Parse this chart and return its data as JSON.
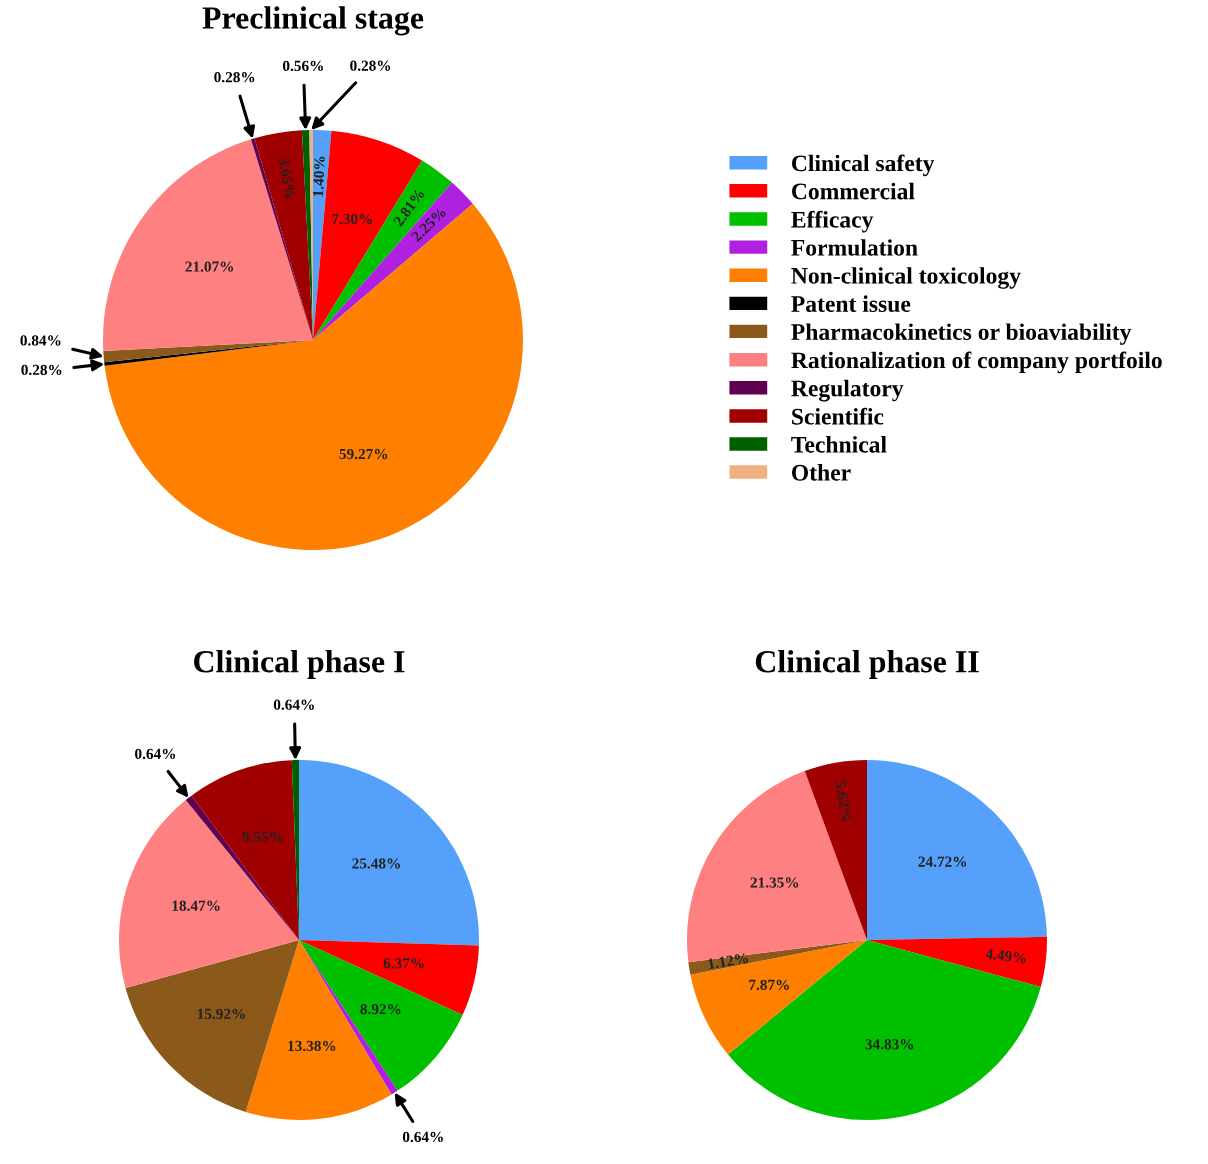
{
  "chart_data": [
    {
      "type": "pie",
      "title": "Preclinical stage",
      "legend": "right",
      "categories": [
        "Clinical safety",
        "Commercial",
        "Efficacy",
        "Formulation",
        "Non-clinical toxicology",
        "Patent issue",
        "Pharmacokinetics or bioaviability",
        "Rationalization of company portfoilo",
        "Regulatory",
        "Scientific",
        "Technical",
        "Other"
      ],
      "values": [
        1.4,
        7.3,
        2.81,
        2.25,
        59.27,
        0.28,
        0.84,
        21.07,
        0.28,
        3.65,
        0.56,
        0.28
      ],
      "value_labels": [
        "1.40%",
        "7.30%",
        "2.81%",
        "2.25%",
        "59.27%",
        "0.28%",
        "0.84%",
        "21.07%",
        "0.28%",
        "3.65%",
        "0.56%",
        "0.28%"
      ],
      "colors": [
        "#55a0fa",
        "#ff0000",
        "#00c000",
        "#b020e0",
        "#ff8000",
        "#000000",
        "#8b5a1a",
        "#ff8080",
        "#600050",
        "#a00000",
        "#006000",
        "#f0b080"
      ]
    },
    {
      "type": "pie",
      "title": "Clinical phase I",
      "categories": [
        null,
        null,
        null,
        null,
        null,
        null,
        null,
        null,
        null,
        null
      ],
      "values": [
        25.48,
        6.37,
        8.92,
        0.64,
        13.38,
        15.92,
        18.47,
        0.64,
        9.55,
        0.64
      ],
      "value_labels": [
        "25.48%",
        "6.37%",
        "8.92%",
        "0.64%",
        "13.38%",
        "15.92%",
        "18.47%",
        "0.64%",
        "9.55%",
        "0.64%"
      ],
      "colors": [
        "#55a0fa",
        "#ff0000",
        "#00c000",
        "#b020e0",
        "#ff8000",
        "#8b5a1a",
        "#ff8080",
        "#600050",
        "#a00000",
        "#006000"
      ]
    },
    {
      "type": "pie",
      "title": "Clinical phase II",
      "categories": [
        null,
        null,
        null,
        null,
        null,
        null,
        null
      ],
      "values": [
        24.72,
        4.49,
        34.83,
        7.87,
        1.12,
        21.35,
        5.62
      ],
      "value_labels": [
        "24.72%",
        "4.49%",
        "34.83%",
        "7.87%",
        "1.12%",
        "21.35%",
        "5.62%"
      ],
      "colors": [
        "#55a0fa",
        "#ff0000",
        "#00c000",
        "#ff8000",
        "#8b5a1a",
        "#ff8080",
        "#a00000"
      ]
    }
  ]
}
